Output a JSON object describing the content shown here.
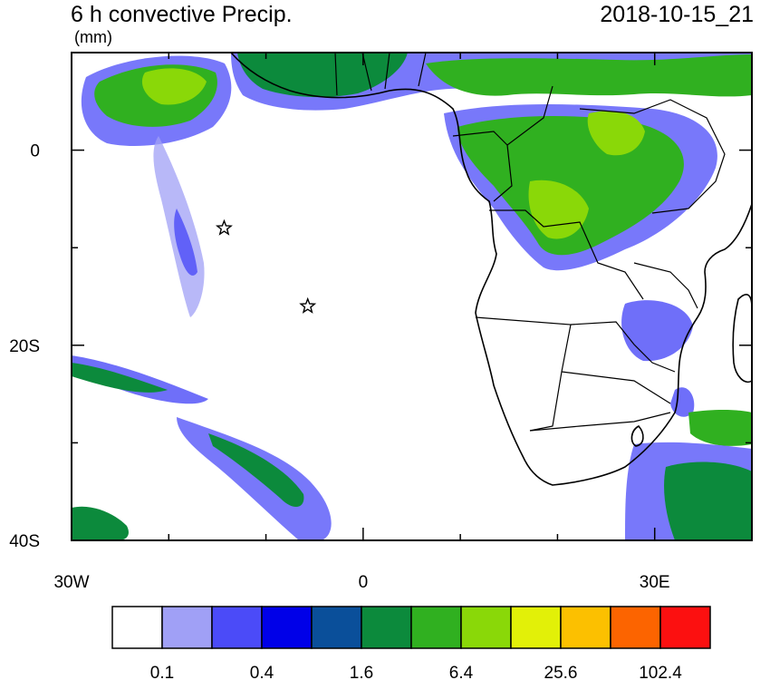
{
  "title": "6 h convective Precip.",
  "timestamp": "2018-10-15_21",
  "units": "(mm)",
  "axes": {
    "lat_labels": [
      {
        "text": "0",
        "lat": 0
      },
      {
        "text": "20S",
        "lat": -20
      },
      {
        "text": "40S",
        "lat": -40
      }
    ],
    "lon_labels": [
      {
        "text": "30W",
        "lon": -30
      },
      {
        "text": "0",
        "lon": 0
      },
      {
        "text": "30E",
        "lon": 30
      }
    ],
    "lon_range": [
      -30,
      40
    ],
    "lat_range": [
      -40,
      10
    ],
    "minor_tick_step_deg": 10
  },
  "colorbar": {
    "colors": [
      "#ffffff",
      "#a0a0f6",
      "#4b4bf8",
      "#0000e8",
      "#0a4f9a",
      "#0c8a3c",
      "#30b020",
      "#8ad808",
      "#e2f008",
      "#fcc000",
      "#fc6400",
      "#fc1010"
    ],
    "labels": [
      "0.1",
      "0.4",
      "1.6",
      "6.4",
      "25.6",
      "102.4"
    ]
  },
  "markers": [
    {
      "name": "star-marker-1",
      "lon": -14.3,
      "lat": -8
    },
    {
      "name": "star-marker-2",
      "lon": -5.7,
      "lat": -16
    }
  ]
}
